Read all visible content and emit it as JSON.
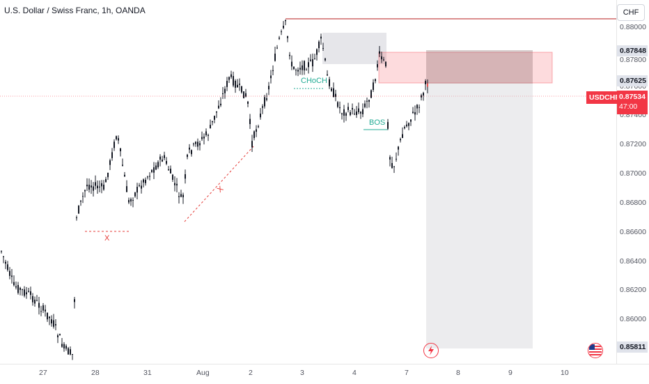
{
  "header": {
    "title": "U.S. Dollar / Swiss Franc, 1h, OANDA"
  },
  "currency_button": {
    "label": "CHF"
  },
  "price_axis": {
    "ticks": [
      "0.88000",
      "0.87800",
      "0.87600",
      "0.87400",
      "0.87200",
      "0.87000",
      "0.86800",
      "0.86600",
      "0.86400",
      "0.86200",
      "0.86000"
    ],
    "tags": {
      "upper": "0.87848",
      "entry": "0.87625",
      "lower": "0.85811"
    },
    "symbol": "USDCHF",
    "current_price": "0.87534",
    "countdown": "47:00"
  },
  "time_axis": {
    "labels": [
      "27",
      "28",
      "31",
      "Aug",
      "2",
      "3",
      "4",
      "7",
      "8",
      "9",
      "10"
    ]
  },
  "annotations": {
    "choch": "CHoCH",
    "bos": "BOS",
    "x1": "X",
    "x2": "X"
  },
  "icons": {
    "flash": "lightning-icon",
    "flag": "us-flag-icon"
  },
  "colors": {
    "up": "#26a69a",
    "down": "#ef5350",
    "candle": "#131722",
    "accent_red": "#f23645",
    "teal": "#22ab94"
  }
}
